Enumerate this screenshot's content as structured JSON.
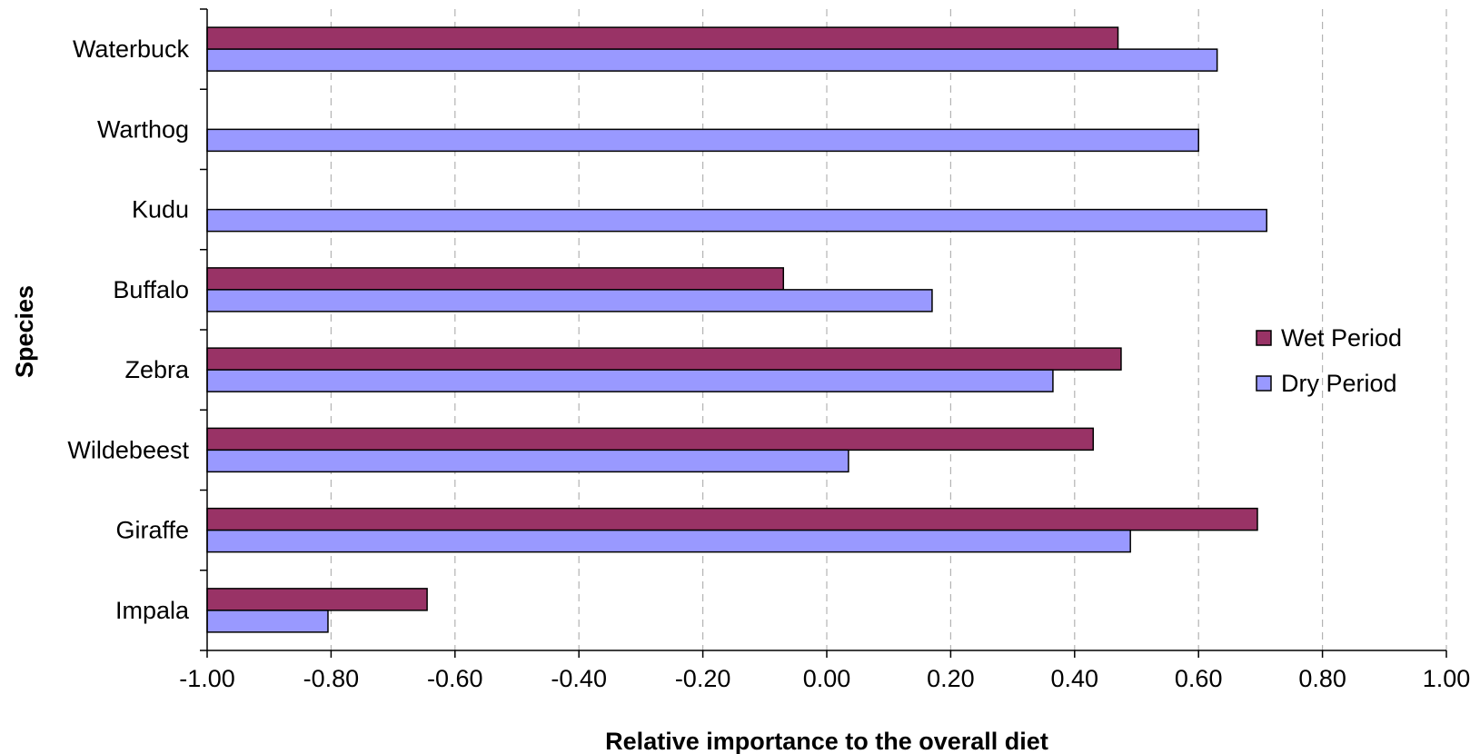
{
  "chart_data": {
    "type": "bar",
    "orientation": "horizontal",
    "title": "",
    "xlabel": "Relative importance to the overall diet",
    "ylabel": "Species",
    "xlim": [
      -1.0,
      1.0
    ],
    "xticks": [
      "-1.00",
      "-0.80",
      "-0.60",
      "-0.40",
      "-0.20",
      "0.00",
      "0.20",
      "0.40",
      "0.60",
      "0.80",
      "1.00"
    ],
    "categories": [
      "Waterbuck",
      "Warthog",
      "Kudu",
      "Buffalo",
      "Zebra",
      "Wildebeest",
      "Giraffe",
      "Impala"
    ],
    "series": [
      {
        "name": "Wet Period",
        "color": "#993366",
        "values": [
          0.47,
          null,
          null,
          -0.07,
          0.475,
          0.43,
          0.695,
          -0.645
        ]
      },
      {
        "name": "Dry Period",
        "color": "#9999ff",
        "values": [
          0.63,
          0.6,
          0.71,
          0.17,
          0.365,
          0.035,
          0.49,
          -0.805
        ]
      }
    ],
    "grid": true,
    "legend_position": "right"
  }
}
